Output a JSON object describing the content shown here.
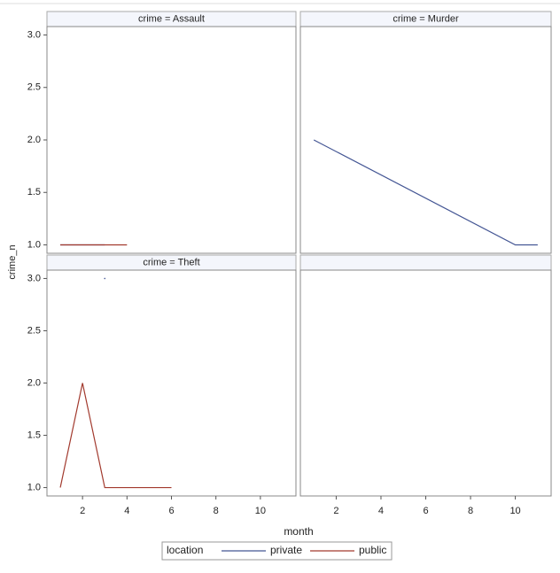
{
  "axes": {
    "xlabel": "month",
    "ylabel": "crime_n",
    "legend_title": "location",
    "xlim": [
      0.4,
      11.6
    ],
    "xticks": [
      2,
      4,
      6,
      8,
      10
    ],
    "ylim": [
      0.92,
      3.08
    ],
    "yticks": [
      {
        "value": 1.0,
        "label": "1.0"
      },
      1.5,
      {
        "value": 2.0,
        "label": "2.0"
      },
      2.5,
      {
        "value": 3.0,
        "label": "3.0"
      }
    ]
  },
  "chart_data": [
    {
      "type": "line",
      "title": "crime = Assault",
      "series": [
        {
          "name": "private",
          "color": "#445694",
          "x": [
            1,
            3
          ],
          "values": [
            1,
            1
          ]
        },
        {
          "name": "public",
          "color": "#a23a2e",
          "x": [
            1,
            4
          ],
          "values": [
            1,
            1
          ]
        }
      ]
    },
    {
      "type": "line",
      "title": "crime = Murder",
      "series": [
        {
          "name": "private",
          "color": "#445694",
          "x": [
            1,
            10,
            11
          ],
          "values": [
            2,
            1,
            1
          ]
        }
      ]
    },
    {
      "type": "line",
      "title": "crime = Theft",
      "series": [
        {
          "name": "private",
          "color": "#445694",
          "x": [
            3
          ],
          "values": [
            3
          ]
        },
        {
          "name": "public",
          "color": "#a23a2e",
          "x": [
            1,
            2,
            3,
            6
          ],
          "values": [
            1,
            2,
            1,
            1
          ]
        }
      ]
    }
  ]
}
